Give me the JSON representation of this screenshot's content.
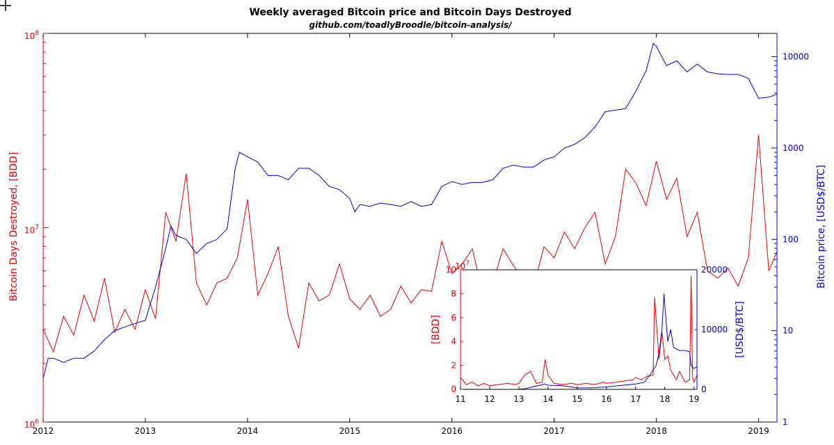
{
  "chart_data": {
    "type": "line",
    "title": "Weekly averaged Bitcoin price and Bitcoin Days Destroyed",
    "subtitle": "github.com/toadlyBroodle/bitcoin-analysis/",
    "colors": {
      "bdd": "#e00000",
      "price": "#0000cc",
      "axis": "#000000"
    },
    "main": {
      "x_ticks": [
        "2012",
        "2013",
        "2014",
        "2015",
        "2016",
        "2017",
        "2018",
        "2019"
      ],
      "xlim": [
        2012.0,
        2019.18
      ],
      "left_axis": {
        "label": "Bitcoin Days Destroyed, [BDD]",
        "scale": "log",
        "ylim": [
          1000000,
          100000000
        ],
        "tick_labels": [
          {
            "base": "10",
            "exp": "6"
          },
          {
            "base": "10",
            "exp": "7"
          },
          {
            "base": "10",
            "exp": "8"
          }
        ]
      },
      "right_axis": {
        "label": "Bitcoin price, [USD$/BTC]",
        "scale": "log",
        "ylim": [
          1,
          18000
        ],
        "tick_labels": [
          "1",
          "10",
          "100",
          "1000",
          "10000"
        ]
      },
      "series": [
        {
          "axis": "left",
          "x": [
            2012.0,
            2012.1,
            2012.2,
            2012.3,
            2012.4,
            2012.5,
            2012.6,
            2012.7,
            2012.8,
            2012.9,
            2013.0,
            2013.1,
            2013.2,
            2013.3,
            2013.4,
            2013.5,
            2013.6,
            2013.7,
            2013.8,
            2013.9,
            2014.0,
            2014.1,
            2014.2,
            2014.3,
            2014.4,
            2014.5,
            2014.6,
            2014.7,
            2014.8,
            2014.9,
            2015.0,
            2015.1,
            2015.2,
            2015.3,
            2015.4,
            2015.5,
            2015.6,
            2015.7,
            2015.8,
            2015.9,
            2016.0,
            2016.1,
            2016.2,
            2016.3,
            2016.4,
            2016.5,
            2016.6,
            2016.7,
            2016.8,
            2016.9,
            2017.0,
            2017.1,
            2017.2,
            2017.3,
            2017.4,
            2017.5,
            2017.6,
            2017.7,
            2017.8,
            2017.9,
            2018.0,
            2018.1,
            2018.2,
            2018.3,
            2018.4,
            2018.5,
            2018.6,
            2018.7,
            2018.8,
            2018.9,
            2019.0,
            2019.1,
            2019.18
          ],
          "y": [
            3000000,
            2300000,
            3500000,
            2800000,
            4500000,
            3300000,
            5500000,
            2900000,
            3800000,
            3000000,
            4800000,
            3400000,
            12000000,
            8500000,
            19000000,
            5200000,
            4000000,
            5200000,
            5500000,
            7000000,
            14000000,
            4500000,
            5800000,
            8000000,
            3500000,
            2400000,
            5200000,
            4200000,
            4500000,
            6500000,
            4300000,
            3800000,
            4500000,
            3500000,
            3800000,
            5000000,
            4100000,
            4800000,
            4700000,
            8500000,
            5800000,
            6500000,
            7800000,
            4600000,
            5200000,
            7800000,
            6400000,
            5400000,
            5000000,
            8000000,
            7000000,
            9500000,
            7800000,
            10000000,
            12000000,
            6500000,
            9000000,
            20000000,
            17000000,
            13000000,
            22000000,
            14000000,
            18000000,
            9000000,
            12000000,
            6000000,
            5500000,
            6200000,
            5000000,
            7000000,
            30000000,
            6000000,
            7500000
          ]
        },
        {
          "axis": "right",
          "x": [
            2012.0,
            2012.05,
            2012.1,
            2012.2,
            2012.3,
            2012.4,
            2012.5,
            2012.6,
            2012.7,
            2012.8,
            2012.9,
            2013.0,
            2013.1,
            2013.2,
            2013.25,
            2013.3,
            2013.4,
            2013.5,
            2013.6,
            2013.7,
            2013.8,
            2013.88,
            2013.92,
            2014.0,
            2014.1,
            2014.2,
            2014.3,
            2014.4,
            2014.5,
            2014.6,
            2014.7,
            2014.8,
            2014.9,
            2015.0,
            2015.05,
            2015.1,
            2015.2,
            2015.3,
            2015.4,
            2015.5,
            2015.6,
            2015.7,
            2015.8,
            2015.9,
            2016.0,
            2016.1,
            2016.2,
            2016.3,
            2016.4,
            2016.5,
            2016.6,
            2016.7,
            2016.8,
            2016.9,
            2017.0,
            2017.1,
            2017.2,
            2017.3,
            2017.4,
            2017.5,
            2017.6,
            2017.7,
            2017.8,
            2017.9,
            2017.97,
            2018.0,
            2018.1,
            2018.2,
            2018.3,
            2018.4,
            2018.5,
            2018.6,
            2018.7,
            2018.8,
            2018.9,
            2019.0,
            2019.1,
            2019.18
          ],
          "y": [
            3,
            5,
            5,
            4.5,
            5,
            5,
            6,
            8,
            10,
            11,
            12,
            13,
            30,
            80,
            140,
            110,
            100,
            70,
            90,
            100,
            130,
            600,
            900,
            800,
            700,
            500,
            500,
            450,
            600,
            600,
            500,
            380,
            350,
            280,
            200,
            240,
            230,
            250,
            240,
            230,
            260,
            230,
            240,
            380,
            430,
            400,
            420,
            420,
            450,
            600,
            650,
            620,
            620,
            740,
            800,
            1000,
            1100,
            1300,
            1700,
            2500,
            2600,
            2700,
            4200,
            7000,
            14000,
            13000,
            8000,
            9000,
            6800,
            8300,
            6800,
            6500,
            6400,
            6400,
            5800,
            3500,
            3600,
            3900
          ]
        }
      ]
    },
    "inset": {
      "x_ticks": [
        "11",
        "12",
        "13",
        "14",
        "15",
        "16",
        "17",
        "18",
        "19"
      ],
      "xlim": [
        2011.0,
        2019.1
      ],
      "left_axis": {
        "label": "[BDD]",
        "ylim": [
          0,
          10
        ],
        "multiplier": {
          "base": "10",
          "exp": "7"
        },
        "tick_labels": [
          "0",
          "2",
          "4",
          "6",
          "8",
          "10"
        ]
      },
      "right_axis": {
        "label": "[USD$/BTC]",
        "ylim": [
          0,
          20000
        ],
        "tick_labels": [
          "0",
          "10000",
          "20000"
        ]
      },
      "series": [
        {
          "axis": "left",
          "x": [
            2011.0,
            2011.2,
            2011.4,
            2011.6,
            2011.8,
            2012.0,
            2012.3,
            2012.6,
            2012.9,
            2013.0,
            2013.2,
            2013.4,
            2013.6,
            2013.8,
            2013.9,
            2014.0,
            2014.2,
            2014.5,
            2014.8,
            2015.0,
            2015.3,
            2015.6,
            2015.9,
            2016.0,
            2016.3,
            2016.6,
            2016.9,
            2017.0,
            2017.2,
            2017.4,
            2017.6,
            2017.65,
            2017.8,
            2017.9,
            2018.0,
            2018.1,
            2018.2,
            2018.3,
            2018.4,
            2018.5,
            2018.7,
            2018.85,
            2018.9,
            2018.95,
            2019.0,
            2019.1
          ],
          "y": [
            1.0,
            0.4,
            0.6,
            0.3,
            0.5,
            0.3,
            0.4,
            0.5,
            0.4,
            0.5,
            1.2,
            1.5,
            0.5,
            0.6,
            2.5,
            1.2,
            0.5,
            0.4,
            0.5,
            0.4,
            0.5,
            0.4,
            0.6,
            0.5,
            0.6,
            0.7,
            0.8,
            1.0,
            0.8,
            1.1,
            1.2,
            7.7,
            2.5,
            4.8,
            2.5,
            2.8,
            1.6,
            1.2,
            0.8,
            1.5,
            0.6,
            0.8,
            9.5,
            1.0,
            0.6,
            1.2
          ]
        },
        {
          "axis": "right",
          "x": [
            2011.0,
            2012.0,
            2013.0,
            2013.2,
            2013.9,
            2014.0,
            2014.5,
            2015.0,
            2015.5,
            2016.0,
            2016.5,
            2017.0,
            2017.3,
            2017.5,
            2017.7,
            2017.8,
            2017.9,
            2017.97,
            2018.0,
            2018.1,
            2018.2,
            2018.3,
            2018.5,
            2018.7,
            2018.85,
            2018.9,
            2019.0,
            2019.1
          ],
          "y": [
            10,
            5,
            13,
            100,
            900,
            700,
            600,
            250,
            250,
            420,
            650,
            900,
            1200,
            2500,
            4000,
            6000,
            10000,
            16000,
            14000,
            8000,
            10000,
            7000,
            6500,
            6500,
            6300,
            4000,
            3500,
            3800
          ]
        }
      ]
    }
  }
}
